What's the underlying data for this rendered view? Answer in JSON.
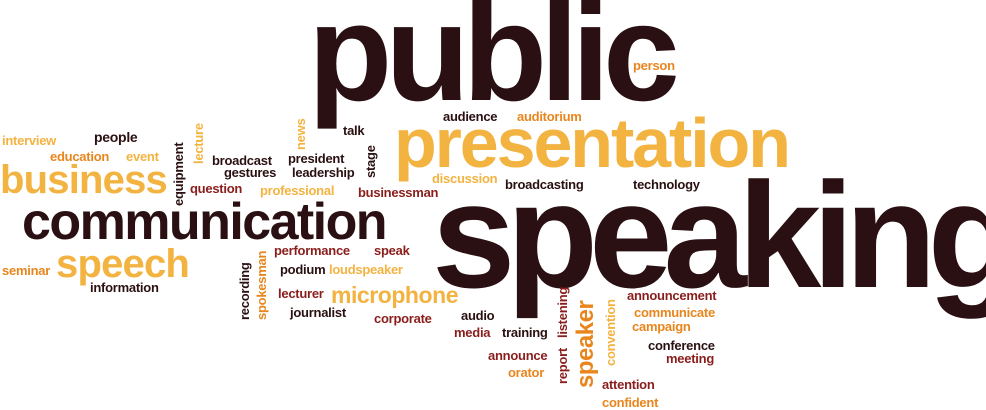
{
  "colors": {
    "dark_brown": "#2a1012",
    "maroon": "#8a1e1c",
    "orange": "#e8861d",
    "gold": "#f3b341"
  },
  "words": {
    "public": "public",
    "speaking": "speaking",
    "presentation": "presentation",
    "communication": "communication",
    "business": "business",
    "speech": "speech",
    "microphone": "microphone",
    "speaker": "speaker",
    "person": "person",
    "audience": "audience",
    "auditorium": "auditorium",
    "talk": "talk",
    "news": "news",
    "interview": "interview",
    "people": "people",
    "education": "education",
    "event": "event",
    "lecture": "lecture",
    "equipment": "equipment",
    "broadcast": "broadcast",
    "gestures": "gestures",
    "president": "president",
    "leadership": "leadership",
    "stage": "stage",
    "question": "question",
    "professional": "professional",
    "businessman": "businessman",
    "discussion": "discussion",
    "broadcasting": "broadcasting",
    "technology": "technology",
    "seminar": "seminar",
    "information": "information",
    "recording": "recording",
    "spokesman": "spokesman",
    "performance": "performance",
    "speak": "speak",
    "podium": "podium",
    "loudspeaker": "loudspeaker",
    "lecturer": "lecturer",
    "journalist": "journalist",
    "corporate": "corporate",
    "audio": "audio",
    "media": "media",
    "training": "training",
    "report": "report",
    "listening": "listening",
    "convention": "convention",
    "announcement": "announcement",
    "communicate": "communicate",
    "campaign": "campaign",
    "conference": "conference",
    "meeting": "meeting",
    "announce": "announce",
    "orator": "orator",
    "attention": "attention",
    "confident": "confident"
  }
}
